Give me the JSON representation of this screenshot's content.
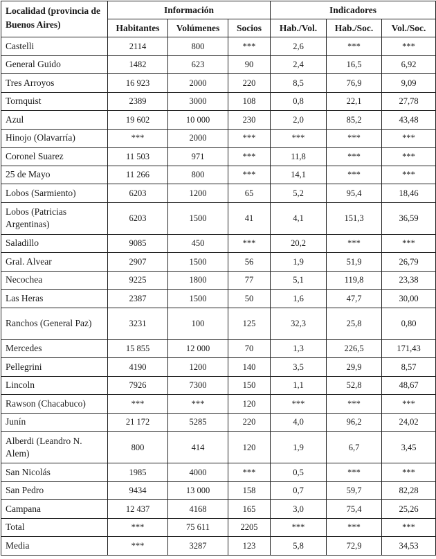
{
  "headers": {
    "locality": "Localidad (provincia de Buenos Aires)",
    "group_info": "Información",
    "group_indicators": "Indicadores",
    "columns": [
      "Habitantes",
      "Volúmenes",
      "Socios",
      "Hab./Vol.",
      "Hab./Soc.",
      "Vol./Soc."
    ]
  },
  "rows": [
    [
      "Castelli",
      "2114",
      "800",
      "***",
      "2,6",
      "***",
      "***"
    ],
    [
      "General Guido",
      "1482",
      "623",
      "90",
      "2,4",
      "16,5",
      "6,92"
    ],
    [
      "Tres Arroyos",
      "16 923",
      "2000",
      "220",
      "8,5",
      "76,9",
      "9,09"
    ],
    [
      "Tornquist",
      "2389",
      "3000",
      "108",
      "0,8",
      "22,1",
      "27,78"
    ],
    [
      "Azul",
      "19 602",
      "10 000",
      "230",
      "2,0",
      "85,2",
      "43,48"
    ],
    [
      "Hinojo (Olavarría)",
      "***",
      "2000",
      "***",
      "***",
      "***",
      "***"
    ],
    [
      "Coronel Suarez",
      "11 503",
      "971",
      "***",
      "11,8",
      "***",
      "***"
    ],
    [
      "25 de Mayo",
      "11 266",
      "800",
      "***",
      "14,1",
      "***",
      "***"
    ],
    [
      "Lobos (Sarmiento)",
      "6203",
      "1200",
      "65",
      "5,2",
      "95,4",
      "18,46"
    ],
    [
      "Lobos (Patricias Argentinas)",
      "6203",
      "1500",
      "41",
      "4,1",
      "151,3",
      "36,59"
    ],
    [
      "Saladillo",
      "9085",
      "450",
      "***",
      "20,2",
      "***",
      "***"
    ],
    [
      "Gral. Alvear",
      "2907",
      "1500",
      "56",
      "1,9",
      "51,9",
      "26,79"
    ],
    [
      "Necochea",
      "9225",
      "1800",
      "77",
      "5,1",
      "119,8",
      "23,38"
    ],
    [
      "Las Heras",
      "2387",
      "1500",
      "50",
      "1,6",
      "47,7",
      "30,00"
    ],
    [
      "Ranchos (General Paz)",
      "3231",
      "100",
      "125",
      "32,3",
      "25,8",
      "0,80"
    ],
    [
      "Mercedes",
      "15 855",
      "12 000",
      "70",
      "1,3",
      "226,5",
      "171,43"
    ],
    [
      "Pellegrini",
      "4190",
      "1200",
      "140",
      "3,5",
      "29,9",
      "8,57"
    ],
    [
      "Lincoln",
      "7926",
      "7300",
      "150",
      "1,1",
      "52,8",
      "48,67"
    ],
    [
      "Rawson (Chacabuco)",
      "***",
      "***",
      "120",
      "***",
      "***",
      "***"
    ],
    [
      "Junín",
      "21 172",
      "5285",
      "220",
      "4,0",
      "96,2",
      "24,02"
    ],
    [
      "Alberdi (Leandro N. Alem)",
      "800",
      "414",
      "120",
      "1,9",
      "6,7",
      "3,45"
    ],
    [
      "San Nicolás",
      "1985",
      "4000",
      "***",
      "0,5",
      "***",
      "***"
    ],
    [
      "San Pedro",
      "9434",
      "13 000",
      "158",
      "0,7",
      "59,7",
      "82,28"
    ],
    [
      "Campana",
      "12 437",
      "4168",
      "165",
      "3,0",
      "75,4",
      "25,26"
    ],
    [
      "Total",
      "***",
      "75 611",
      "2205",
      "***",
      "***",
      "***"
    ],
    [
      "Media",
      "***",
      "3287",
      "123",
      "5,8",
      "72,9",
      "34,53"
    ]
  ]
}
